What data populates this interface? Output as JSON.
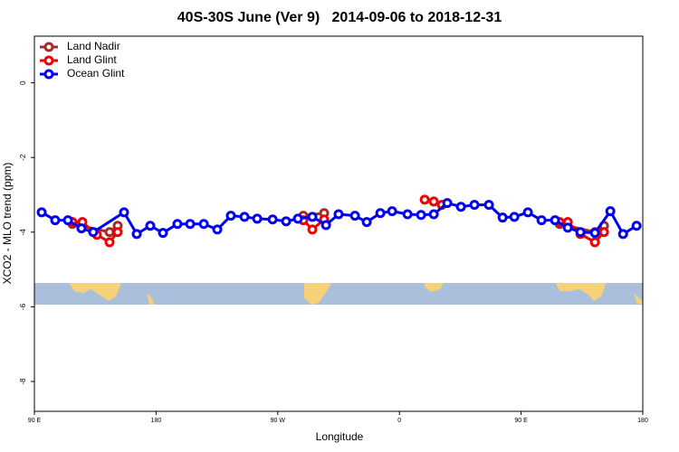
{
  "chart_data": {
    "type": "line",
    "title": "40S-30S June (Ver 9)   2014-09-06 to 2018-12-31",
    "x_label": "Longitude",
    "y_label": "XCO2 - MLO trend (ppm)",
    "xlim": [
      90,
      540
    ],
    "ylim": [
      -8.8,
      1.25
    ],
    "xticks": [
      {
        "value": 90,
        "label": "90 E"
      },
      {
        "value": 180,
        "label": "180"
      },
      {
        "value": 270,
        "label": "90 W"
      },
      {
        "value": 360,
        "label": "0"
      },
      {
        "value": 450,
        "label": "90 E"
      },
      {
        "value": 540,
        "label": "180"
      }
    ],
    "yticks": [
      0,
      -2,
      -4,
      -6,
      -8
    ],
    "legend": "top-left",
    "series": [
      {
        "name": "Land Nadir",
        "color": "#a52a2a",
        "x": [
          118.1,
          145.6,
          151.6,
          null,
          288.9,
          304.3,
          null,
          478.5,
          504.6,
          511.3
        ],
        "values": [
          -3.78,
          -4.0,
          -3.83,
          null,
          -3.56,
          -3.49,
          null,
          -3.78,
          -4.0,
          -3.83
        ]
      },
      {
        "name": "Land Glint",
        "color": "#ee0000",
        "x": [
          118.1,
          125.5,
          136.2,
          145.6,
          151.6,
          null,
          288.9,
          295.6,
          304.3,
          null,
          378.7,
          385.4,
          391.4,
          null,
          478.5,
          484.5,
          493.9,
          504.6,
          511.3
        ],
        "values": [
          -3.73,
          -3.73,
          -4.07,
          -4.27,
          -4.0,
          null,
          -3.68,
          -3.93,
          -3.66,
          null,
          -3.13,
          -3.18,
          -3.27,
          null,
          -3.73,
          -3.73,
          -4.05,
          -4.27,
          -4.0
        ]
      },
      {
        "name": "Ocean Glint",
        "color": "#0000ee",
        "x": [
          95.4,
          105.4,
          114.8,
          124.8,
          133.5,
          156.3,
          165.7,
          175.7,
          185.1,
          195.8,
          205.2,
          215.3,
          225.3,
          235.3,
          245.4,
          254.8,
          266.2,
          276.2,
          284.9,
          295.6,
          305.7,
          315.0,
          327.1,
          335.8,
          345.9,
          354.6,
          366.0,
          376.0,
          385.4,
          395.4,
          405.5,
          415.5,
          426.2,
          436.3,
          445.0,
          455.0,
          465.1,
          475.1,
          484.5,
          493.9,
          504.6,
          516.0,
          525.4,
          535.4
        ],
        "values": [
          -3.47,
          -3.68,
          -3.68,
          -3.9,
          -4.0,
          -3.47,
          -4.05,
          -3.83,
          -4.02,
          -3.78,
          -3.78,
          -3.78,
          -3.93,
          -3.56,
          -3.59,
          -3.64,
          -3.66,
          -3.71,
          -3.64,
          -3.59,
          -3.81,
          -3.52,
          -3.56,
          -3.73,
          -3.49,
          -3.44,
          -3.52,
          -3.54,
          -3.52,
          -3.22,
          -3.32,
          -3.27,
          -3.27,
          -3.61,
          -3.59,
          -3.47,
          -3.68,
          -3.68,
          -3.88,
          -4.0,
          -4.02,
          -3.44,
          -4.05,
          -3.83
        ]
      }
    ]
  }
}
